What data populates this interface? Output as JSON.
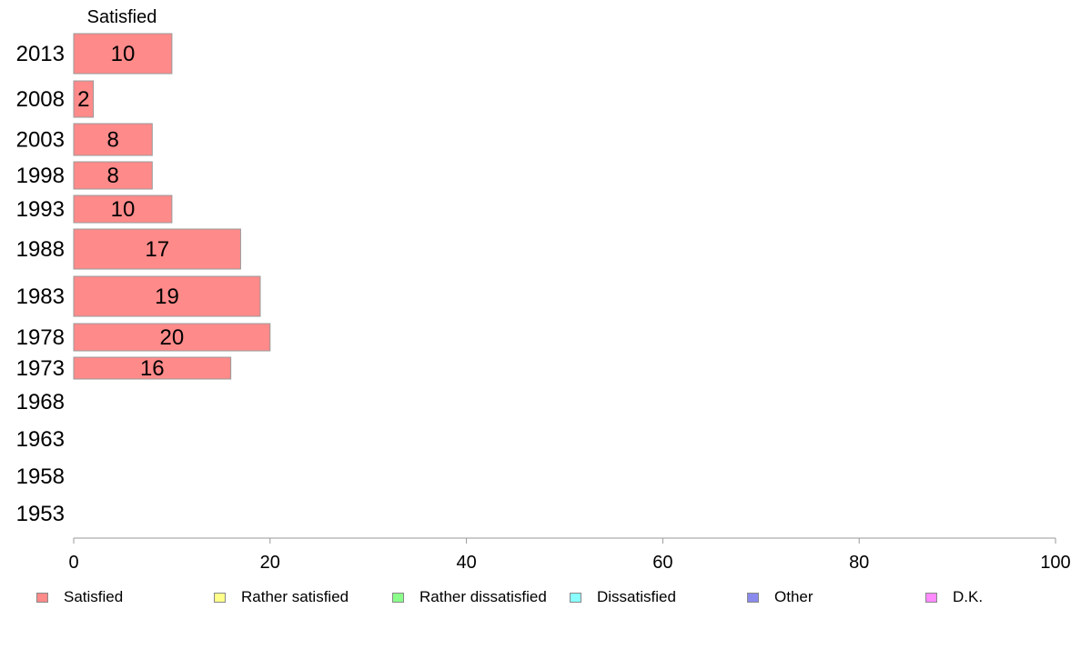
{
  "chart_data": {
    "type": "bar",
    "orientation": "horizontal",
    "stacked": true,
    "categories": [
      "2013",
      "2008",
      "2003",
      "1998",
      "1993",
      "1988",
      "1983",
      "1978",
      "1973",
      "1968",
      "1963",
      "1958",
      "1953"
    ],
    "series": [
      {
        "name": "Satisfied",
        "color": "#ff8a8a",
        "values": [
          10,
          2,
          8,
          8,
          10,
          17,
          19,
          20,
          16,
          null,
          null,
          null,
          null
        ]
      },
      {
        "name": "Rather satisfied",
        "color": "#ffff8a",
        "values": [
          null,
          null,
          null,
          null,
          null,
          null,
          null,
          null,
          null,
          null,
          null,
          null,
          null
        ]
      },
      {
        "name": "Rather dissatisfied",
        "color": "#8aff8a",
        "values": [
          null,
          null,
          null,
          null,
          null,
          null,
          null,
          null,
          null,
          null,
          null,
          null,
          null
        ]
      },
      {
        "name": "Dissatisfied",
        "color": "#8affff",
        "values": [
          null,
          null,
          null,
          null,
          null,
          null,
          null,
          null,
          null,
          null,
          null,
          null,
          null
        ]
      },
      {
        "name": "Other",
        "color": "#8a8aee",
        "values": [
          null,
          null,
          null,
          null,
          null,
          null,
          null,
          null,
          null,
          null,
          null,
          null,
          null
        ]
      },
      {
        "name": "D.K.",
        "color": "#ff8aff",
        "values": [
          null,
          null,
          null,
          null,
          null,
          null,
          null,
          null,
          null,
          null,
          null,
          null,
          null
        ]
      }
    ],
    "data_labels": [
      "10",
      "2",
      "8",
      "8",
      "10",
      "17",
      "19",
      "20",
      "16",
      "",
      "",
      "",
      ""
    ],
    "top_label": "Satisfied",
    "xlim": [
      0,
      100
    ],
    "xticks": [
      "0",
      "20",
      "40",
      "60",
      "80",
      "100"
    ],
    "grid": false,
    "legend_position": "bottom"
  },
  "legend": [
    {
      "label": "Satisfied",
      "color": "#ff8a8a"
    },
    {
      "label": "Rather satisfied",
      "color": "#ffff8a"
    },
    {
      "label": "Rather dissatisfied",
      "color": "#8aff8a"
    },
    {
      "label": "Dissatisfied",
      "color": "#8affff"
    },
    {
      "label": "Other",
      "color": "#8a8aee"
    },
    {
      "label": "D.K.",
      "color": "#ff8aff"
    }
  ]
}
